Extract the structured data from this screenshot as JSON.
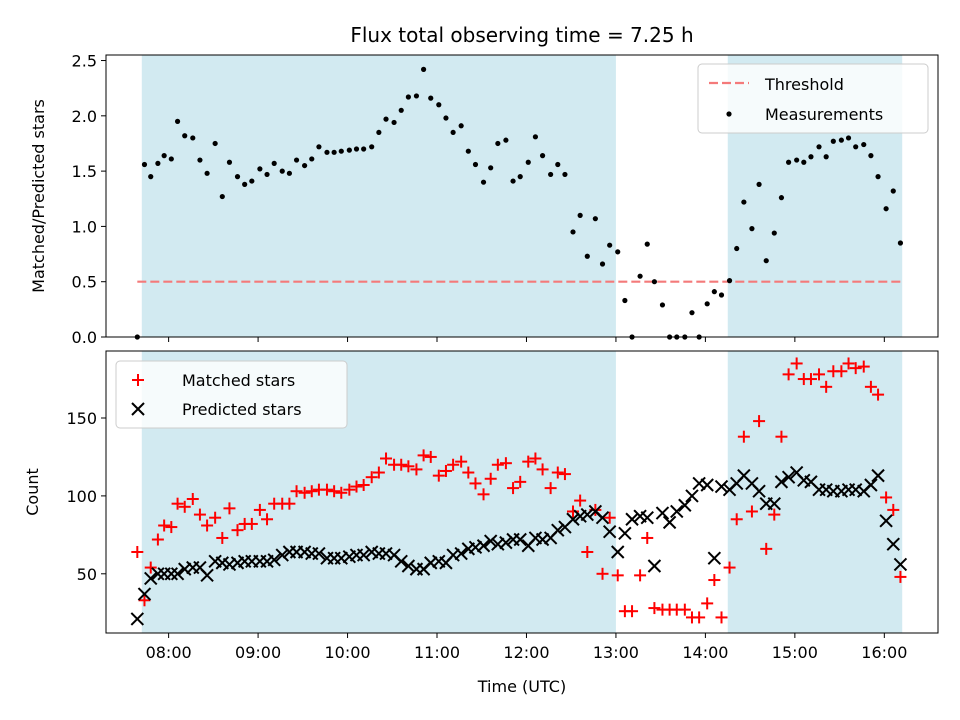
{
  "chart_data": [
    {
      "type": "scatter",
      "title": "Flux total observing time = 7.25 h",
      "ylabel": "Matched/Predicted stars",
      "xlabel": "",
      "ylim": [
        0,
        2.55
      ],
      "yticks": [
        "0.0",
        "0.5",
        "1.0",
        "1.5",
        "2.0",
        "2.5"
      ],
      "ytick_values": [
        0,
        0.5,
        1.0,
        1.5,
        2.0,
        2.5
      ],
      "grid": false,
      "legend": "top-right",
      "threshold": {
        "name": "Threshold",
        "value": 0.5,
        "x_start": 7.65,
        "x_end": 16.2,
        "color": "#f47a7a"
      },
      "shaded_intervals": [
        [
          7.7,
          13.0
        ],
        [
          14.25,
          16.2
        ]
      ],
      "shade_color": "#add8e6",
      "series": [
        {
          "name": "Measurements",
          "color": "#000000",
          "x": [
            7.65,
            7.73,
            7.8,
            7.88,
            7.95,
            8.03,
            8.1,
            8.18,
            8.27,
            8.35,
            8.43,
            8.52,
            8.6,
            8.68,
            8.77,
            8.85,
            8.93,
            9.02,
            9.1,
            9.18,
            9.27,
            9.35,
            9.43,
            9.52,
            9.6,
            9.68,
            9.77,
            9.85,
            9.93,
            10.02,
            10.1,
            10.18,
            10.27,
            10.35,
            10.43,
            10.52,
            10.6,
            10.68,
            10.77,
            10.85,
            10.93,
            11.02,
            11.1,
            11.18,
            11.27,
            11.35,
            11.43,
            11.52,
            11.6,
            11.68,
            11.77,
            11.85,
            11.93,
            12.02,
            12.1,
            12.18,
            12.27,
            12.35,
            12.43,
            12.52,
            12.6,
            12.68,
            12.77,
            12.85,
            12.93,
            13.02,
            13.1,
            13.18,
            13.27,
            13.35,
            13.43,
            13.52,
            13.6,
            13.68,
            13.77,
            13.85,
            13.93,
            14.02,
            14.1,
            14.18,
            14.27,
            14.35,
            14.43,
            14.52,
            14.6,
            14.68,
            14.77,
            14.85,
            14.93,
            15.02,
            15.1,
            15.18,
            15.27,
            15.35,
            15.43,
            15.52,
            15.6,
            15.68,
            15.77,
            15.85,
            15.93,
            16.02,
            16.1,
            16.18
          ],
          "y": [
            0.0,
            1.56,
            1.45,
            1.57,
            1.64,
            1.61,
            1.95,
            1.82,
            1.8,
            1.6,
            1.48,
            1.75,
            1.27,
            1.58,
            1.45,
            1.38,
            1.41,
            1.52,
            1.47,
            1.57,
            1.5,
            1.48,
            1.6,
            1.55,
            1.61,
            1.72,
            1.67,
            1.67,
            1.68,
            1.69,
            1.7,
            1.7,
            1.72,
            1.85,
            1.97,
            1.94,
            2.05,
            2.17,
            2.18,
            2.42,
            2.16,
            2.1,
            1.98,
            1.85,
            1.91,
            1.68,
            1.56,
            1.4,
            1.53,
            1.75,
            1.78,
            1.41,
            1.45,
            1.58,
            1.81,
            1.64,
            1.47,
            1.56,
            1.47,
            0.95,
            1.1,
            0.73,
            1.07,
            0.66,
            0.83,
            0.77,
            0.33,
            0.0,
            0.55,
            0.84,
            0.5,
            0.29,
            0.0,
            0.0,
            0.0,
            0.22,
            0.0,
            0.3,
            0.41,
            0.38,
            0.51,
            0.8,
            1.22,
            0.98,
            1.38,
            0.69,
            0.94,
            1.26,
            1.58,
            1.6,
            1.58,
            1.63,
            1.72,
            1.63,
            1.77,
            1.78,
            1.8,
            1.72,
            1.74,
            1.64,
            1.45,
            1.16,
            1.32,
            0.85
          ]
        }
      ]
    },
    {
      "type": "scatter",
      "title": "",
      "xlabel": "Time (UTC)",
      "ylabel": "Count",
      "ylim": [
        12,
        193
      ],
      "yticks": [
        "50",
        "100",
        "150"
      ],
      "ytick_values": [
        50,
        100,
        150
      ],
      "xlim": [
        7.3,
        16.6
      ],
      "xticks": [
        "08:00",
        "09:00",
        "10:00",
        "11:00",
        "12:00",
        "13:00",
        "14:00",
        "15:00",
        "16:00"
      ],
      "xtick_values": [
        8,
        9,
        10,
        11,
        12,
        13,
        14,
        15,
        16
      ],
      "grid": false,
      "legend": "top-left",
      "shaded_intervals": [
        [
          7.7,
          13.0
        ],
        [
          14.25,
          16.2
        ]
      ],
      "shade_color": "#add8e6",
      "series": [
        {
          "name": "Matched stars",
          "marker": "plus",
          "color": "#ff0000",
          "x": [
            7.65,
            7.73,
            7.8,
            7.88,
            7.95,
            8.03,
            8.1,
            8.18,
            8.27,
            8.35,
            8.43,
            8.52,
            8.6,
            8.68,
            8.77,
            8.85,
            8.93,
            9.02,
            9.1,
            9.18,
            9.27,
            9.35,
            9.43,
            9.52,
            9.6,
            9.68,
            9.77,
            9.85,
            9.93,
            10.02,
            10.1,
            10.18,
            10.27,
            10.35,
            10.43,
            10.52,
            10.6,
            10.68,
            10.77,
            10.85,
            10.93,
            11.02,
            11.1,
            11.18,
            11.27,
            11.35,
            11.43,
            11.52,
            11.6,
            11.68,
            11.77,
            11.85,
            11.93,
            12.02,
            12.1,
            12.18,
            12.27,
            12.35,
            12.43,
            12.52,
            12.6,
            12.68,
            12.77,
            12.85,
            12.93,
            13.02,
            13.1,
            13.18,
            13.27,
            13.35,
            13.43,
            13.52,
            13.6,
            13.68,
            13.77,
            13.85,
            13.93,
            14.02,
            14.1,
            14.18,
            14.27,
            14.35,
            14.43,
            14.52,
            14.6,
            14.68,
            14.77,
            14.85,
            14.93,
            15.02,
            15.1,
            15.18,
            15.27,
            15.35,
            15.43,
            15.52,
            15.6,
            15.68,
            15.77,
            15.85,
            15.93,
            16.02,
            16.1,
            16.18
          ],
          "y": [
            64,
            33,
            54,
            72,
            81,
            80,
            95,
            93,
            98,
            88,
            81,
            86,
            73,
            92,
            78,
            82,
            82,
            91,
            85,
            95,
            95,
            95,
            103,
            102,
            103,
            104,
            104,
            103,
            102,
            104,
            106,
            107,
            112,
            115,
            124,
            120,
            120,
            119,
            117,
            126,
            125,
            113,
            116,
            120,
            122,
            115,
            108,
            101,
            111,
            120,
            121,
            105,
            109,
            122,
            124,
            117,
            105,
            115,
            114,
            90,
            97,
            64,
            91,
            50,
            86,
            49,
            26,
            26,
            49,
            73,
            28,
            27,
            27,
            27,
            27,
            22,
            22,
            31,
            46,
            22,
            54,
            85,
            138,
            90,
            148,
            66,
            88,
            138,
            178,
            185,
            175,
            175,
            178,
            170,
            180,
            180,
            185,
            182,
            183,
            170,
            165,
            99,
            91,
            48
          ]
        },
        {
          "name": "Predicted stars",
          "marker": "x",
          "color": "#000000",
          "x": [
            7.65,
            7.73,
            7.8,
            7.88,
            7.95,
            8.03,
            8.1,
            8.18,
            8.27,
            8.35,
            8.43,
            8.52,
            8.6,
            8.68,
            8.77,
            8.85,
            8.93,
            9.02,
            9.1,
            9.18,
            9.27,
            9.35,
            9.43,
            9.52,
            9.6,
            9.68,
            9.77,
            9.85,
            9.93,
            10.02,
            10.1,
            10.18,
            10.27,
            10.35,
            10.43,
            10.52,
            10.6,
            10.68,
            10.77,
            10.85,
            10.93,
            11.02,
            11.1,
            11.18,
            11.27,
            11.35,
            11.43,
            11.52,
            11.6,
            11.68,
            11.77,
            11.85,
            11.93,
            12.02,
            12.1,
            12.18,
            12.27,
            12.35,
            12.43,
            12.52,
            12.6,
            12.68,
            12.77,
            12.85,
            12.93,
            13.02,
            13.1,
            13.18,
            13.27,
            13.35,
            13.43,
            13.52,
            13.6,
            13.68,
            13.77,
            13.85,
            13.93,
            14.02,
            14.1,
            14.18,
            14.27,
            14.35,
            14.43,
            14.52,
            14.6,
            14.68,
            14.77,
            14.85,
            14.93,
            15.02,
            15.1,
            15.18,
            15.27,
            15.35,
            15.43,
            15.52,
            15.6,
            15.68,
            15.77,
            15.85,
            15.93,
            16.02,
            16.1,
            16.18
          ],
          "y": [
            21,
            37,
            47,
            50,
            50,
            50,
            50,
            53,
            54,
            54,
            49,
            58,
            57,
            56,
            57,
            58,
            58,
            58,
            58,
            59,
            62,
            64,
            64,
            64,
            63,
            63,
            60,
            60,
            60,
            61,
            62,
            62,
            64,
            63,
            63,
            62,
            58,
            55,
            53,
            53,
            57,
            58,
            57,
            62,
            63,
            66,
            67,
            68,
            71,
            69,
            70,
            72,
            72,
            68,
            73,
            72,
            73,
            78,
            80,
            85,
            87,
            88,
            90,
            86,
            77,
            64,
            76,
            85,
            87,
            86,
            55,
            89,
            83,
            90,
            94,
            100,
            108,
            107,
            60,
            106,
            104,
            108,
            113,
            108,
            103,
            95,
            95,
            109,
            112,
            115,
            110,
            109,
            104,
            104,
            103,
            103,
            104,
            104,
            103,
            107,
            113,
            84,
            69,
            56
          ]
        }
      ]
    }
  ]
}
